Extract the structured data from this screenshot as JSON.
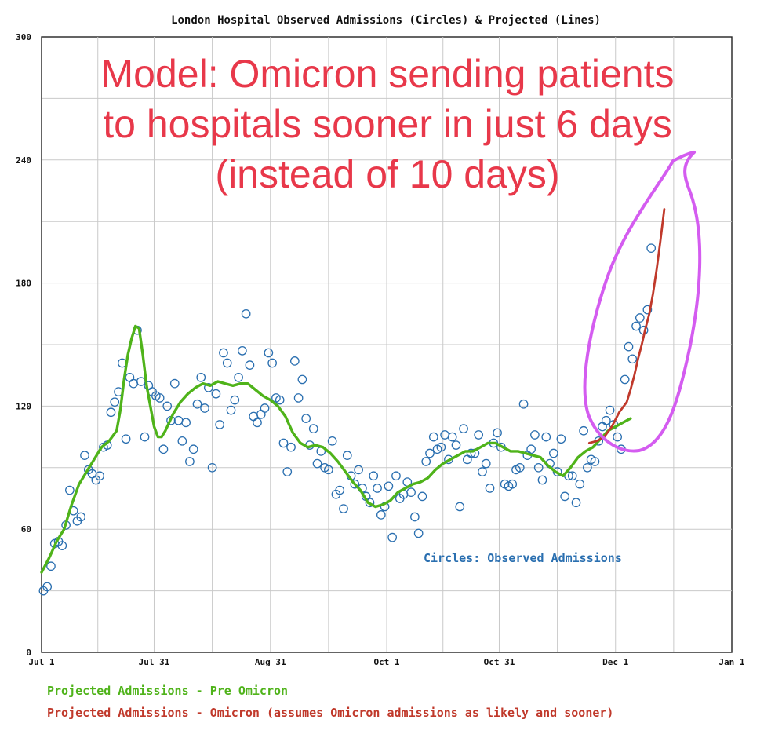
{
  "chart_data": {
    "type": "scatter",
    "title": "London Hospital Observed Admissions (Circles) & Projected (Lines)",
    "x_ticks": [
      "Jul 1",
      "Jul 31",
      "Aug 31",
      "Oct 1",
      "Oct 31",
      "Dec 1",
      "Jan 1"
    ],
    "x_tick_days": [
      0,
      30,
      61,
      92,
      122,
      153,
      184
    ],
    "x_unit": "days since Jul 1",
    "xlim": [
      0,
      184
    ],
    "y_ticks": [
      "0",
      "60",
      "120",
      "180",
      "240",
      "300"
    ],
    "ylim": [
      0,
      300
    ],
    "grid": true,
    "annotation_headline": [
      "Model: Omicron sending patients",
      "to hospitals sooner in just 6 days",
      "(instead of 10 days)"
    ],
    "annotation_observed": "Circles: Observed Admissions",
    "legend": [
      {
        "label": "Projected Admissions - Pre Omicron",
        "color": "#4fb31a"
      },
      {
        "label": "Projected Admissions - Omicron (assumes Omicron admissions as likely and sooner)",
        "color": "#c0392b"
      }
    ],
    "highlight_color": "#d45cf0",
    "observed": {
      "name": "Observed Admissions",
      "color": "#2a6fb0",
      "points": [
        [
          0.5,
          30
        ],
        [
          1.5,
          32
        ],
        [
          2.5,
          42
        ],
        [
          3.5,
          53
        ],
        [
          4.5,
          54
        ],
        [
          5.5,
          52
        ],
        [
          6.5,
          62
        ],
        [
          7.5,
          79
        ],
        [
          8.5,
          69
        ],
        [
          9.5,
          64
        ],
        [
          10.5,
          66
        ],
        [
          11.5,
          96
        ],
        [
          12.5,
          89
        ],
        [
          13.5,
          87
        ],
        [
          14.5,
          84
        ],
        [
          15.5,
          86
        ],
        [
          16.5,
          100
        ],
        [
          17.5,
          101
        ],
        [
          18.5,
          117
        ],
        [
          19.5,
          122
        ],
        [
          20.5,
          127
        ],
        [
          21.5,
          141
        ],
        [
          22.5,
          104
        ],
        [
          23.5,
          134
        ],
        [
          24.5,
          131
        ],
        [
          25.5,
          157
        ],
        [
          26.5,
          132
        ],
        [
          27.5,
          105
        ],
        [
          28.5,
          130
        ],
        [
          29.5,
          127
        ],
        [
          30.5,
          125
        ],
        [
          31.5,
          124
        ],
        [
          32.5,
          99
        ],
        [
          33.5,
          120
        ],
        [
          34.5,
          113
        ],
        [
          35.5,
          131
        ],
        [
          36.5,
          113
        ],
        [
          37.5,
          103
        ],
        [
          38.5,
          112
        ],
        [
          39.5,
          93
        ],
        [
          40.5,
          99
        ],
        [
          41.5,
          121
        ],
        [
          42.5,
          134
        ],
        [
          43.5,
          119
        ],
        [
          44.5,
          129
        ],
        [
          45.5,
          90
        ],
        [
          46.5,
          126
        ],
        [
          47.5,
          111
        ],
        [
          48.5,
          146
        ],
        [
          49.5,
          141
        ],
        [
          50.5,
          118
        ],
        [
          51.5,
          123
        ],
        [
          52.5,
          134
        ],
        [
          53.5,
          147
        ],
        [
          54.5,
          165
        ],
        [
          55.5,
          140
        ],
        [
          56.5,
          115
        ],
        [
          57.5,
          112
        ],
        [
          58.5,
          116
        ],
        [
          59.5,
          119
        ],
        [
          60.5,
          146
        ],
        [
          61.5,
          141
        ],
        [
          62.5,
          124
        ],
        [
          63.5,
          123
        ],
        [
          64.5,
          102
        ],
        [
          65.5,
          88
        ],
        [
          66.5,
          100
        ],
        [
          67.5,
          142
        ],
        [
          68.5,
          124
        ],
        [
          69.5,
          133
        ],
        [
          70.5,
          114
        ],
        [
          71.5,
          101
        ],
        [
          72.5,
          109
        ],
        [
          73.5,
          92
        ],
        [
          74.5,
          98
        ],
        [
          75.5,
          90
        ],
        [
          76.5,
          89
        ],
        [
          77.5,
          103
        ],
        [
          78.5,
          77
        ],
        [
          79.5,
          79
        ],
        [
          80.5,
          70
        ],
        [
          81.5,
          96
        ],
        [
          82.5,
          86
        ],
        [
          83.5,
          82
        ],
        [
          84.5,
          89
        ],
        [
          85.5,
          80
        ],
        [
          86.5,
          76
        ],
        [
          87.5,
          73
        ],
        [
          88.5,
          86
        ],
        [
          89.5,
          80
        ],
        [
          90.5,
          67
        ],
        [
          91.5,
          71
        ],
        [
          92.5,
          81
        ],
        [
          93.5,
          56
        ],
        [
          94.5,
          86
        ],
        [
          95.5,
          75
        ],
        [
          96.5,
          77
        ],
        [
          97.5,
          83
        ],
        [
          98.5,
          78
        ],
        [
          99.5,
          66
        ],
        [
          100.5,
          58
        ],
        [
          101.5,
          76
        ],
        [
          102.5,
          93
        ],
        [
          103.5,
          97
        ],
        [
          104.5,
          105
        ],
        [
          105.5,
          99
        ],
        [
          106.5,
          100
        ],
        [
          107.5,
          106
        ],
        [
          108.5,
          94
        ],
        [
          109.5,
          105
        ],
        [
          110.5,
          101
        ],
        [
          111.5,
          71
        ],
        [
          112.5,
          109
        ],
        [
          113.5,
          94
        ],
        [
          114.5,
          97
        ],
        [
          115.5,
          97
        ],
        [
          116.5,
          106
        ],
        [
          117.5,
          88
        ],
        [
          118.5,
          92
        ],
        [
          119.5,
          80
        ],
        [
          120.5,
          102
        ],
        [
          121.5,
          107
        ],
        [
          122.5,
          100
        ],
        [
          123.5,
          82
        ],
        [
          124.5,
          81
        ],
        [
          125.5,
          82
        ],
        [
          126.5,
          89
        ],
        [
          127.5,
          90
        ],
        [
          128.5,
          121
        ],
        [
          129.5,
          96
        ],
        [
          130.5,
          99
        ],
        [
          131.5,
          106
        ],
        [
          132.5,
          90
        ],
        [
          133.5,
          84
        ],
        [
          134.5,
          105
        ],
        [
          135.5,
          92
        ],
        [
          136.5,
          97
        ],
        [
          137.5,
          88
        ],
        [
          138.5,
          104
        ],
        [
          139.5,
          76
        ],
        [
          140.5,
          86
        ],
        [
          141.5,
          86
        ],
        [
          142.5,
          73
        ],
        [
          143.5,
          82
        ],
        [
          144.5,
          108
        ],
        [
          145.5,
          90
        ],
        [
          146.5,
          94
        ],
        [
          147.5,
          93
        ],
        [
          148.5,
          103
        ],
        [
          149.5,
          110
        ],
        [
          150.5,
          113
        ],
        [
          151.5,
          118
        ],
        [
          152.5,
          111
        ],
        [
          153.5,
          105
        ],
        [
          154.5,
          99
        ],
        [
          155.5,
          133
        ],
        [
          156.5,
          149
        ],
        [
          157.5,
          143
        ],
        [
          158.5,
          159
        ],
        [
          159.5,
          163
        ],
        [
          160.5,
          157
        ],
        [
          161.5,
          167
        ],
        [
          162.5,
          197
        ]
      ]
    },
    "series": [
      {
        "name": "Projected Admissions - Pre Omicron",
        "color": "#4fb31a",
        "points": [
          [
            0,
            39
          ],
          [
            2,
            46
          ],
          [
            4,
            54
          ],
          [
            6,
            60
          ],
          [
            8,
            72
          ],
          [
            10,
            82
          ],
          [
            12,
            88
          ],
          [
            14,
            94
          ],
          [
            16,
            100
          ],
          [
            18,
            103
          ],
          [
            20,
            108
          ],
          [
            21,
            118
          ],
          [
            22,
            133
          ],
          [
            23,
            145
          ],
          [
            24,
            153
          ],
          [
            25,
            159
          ],
          [
            26,
            158
          ],
          [
            27,
            145
          ],
          [
            28,
            130
          ],
          [
            29,
            120
          ],
          [
            30,
            110
          ],
          [
            31,
            105
          ],
          [
            32,
            105
          ],
          [
            33,
            108
          ],
          [
            35,
            116
          ],
          [
            37,
            122
          ],
          [
            39,
            126
          ],
          [
            41,
            129
          ],
          [
            43,
            131
          ],
          [
            45,
            130
          ],
          [
            47,
            132
          ],
          [
            49,
            131
          ],
          [
            51,
            130
          ],
          [
            53,
            131
          ],
          [
            55,
            131
          ],
          [
            57,
            128
          ],
          [
            59,
            125
          ],
          [
            61,
            123
          ],
          [
            63,
            120
          ],
          [
            65,
            115
          ],
          [
            67,
            107
          ],
          [
            69,
            102
          ],
          [
            71,
            100
          ],
          [
            73,
            101
          ],
          [
            75,
            100
          ],
          [
            77,
            97
          ],
          [
            79,
            93
          ],
          [
            81,
            88
          ],
          [
            83,
            83
          ],
          [
            85,
            79
          ],
          [
            87,
            73
          ],
          [
            89,
            71
          ],
          [
            91,
            72
          ],
          [
            93,
            74
          ],
          [
            95,
            78
          ],
          [
            97,
            80
          ],
          [
            99,
            82
          ],
          [
            101,
            83
          ],
          [
            103,
            85
          ],
          [
            105,
            89
          ],
          [
            107,
            92
          ],
          [
            109,
            94
          ],
          [
            111,
            96
          ],
          [
            113,
            98
          ],
          [
            115,
            98
          ],
          [
            117,
            100
          ],
          [
            119,
            102
          ],
          [
            121,
            102
          ],
          [
            123,
            100
          ],
          [
            125,
            98
          ],
          [
            127,
            98
          ],
          [
            129,
            97
          ],
          [
            131,
            96
          ],
          [
            133,
            95
          ],
          [
            135,
            91
          ],
          [
            137,
            88
          ],
          [
            139,
            86
          ],
          [
            141,
            90
          ],
          [
            143,
            95
          ],
          [
            145,
            98
          ],
          [
            147,
            100
          ],
          [
            149,
            104
          ],
          [
            151,
            108
          ],
          [
            153,
            110
          ],
          [
            155,
            112
          ],
          [
            157,
            114
          ]
        ]
      },
      {
        "name": "Projected Admissions - Omicron (assumes Omicron admissions as likely and sooner)",
        "color": "#c0392b",
        "points": [
          [
            146,
            102
          ],
          [
            148,
            103
          ],
          [
            150,
            105
          ],
          [
            152,
            110
          ],
          [
            154,
            117
          ],
          [
            156,
            122
          ],
          [
            157,
            128
          ],
          [
            158,
            135
          ],
          [
            159,
            143
          ],
          [
            160,
            150
          ],
          [
            161,
            158
          ],
          [
            162,
            165
          ],
          [
            163,
            175
          ],
          [
            164,
            187
          ],
          [
            165,
            201
          ],
          [
            166,
            216
          ]
        ]
      }
    ]
  }
}
